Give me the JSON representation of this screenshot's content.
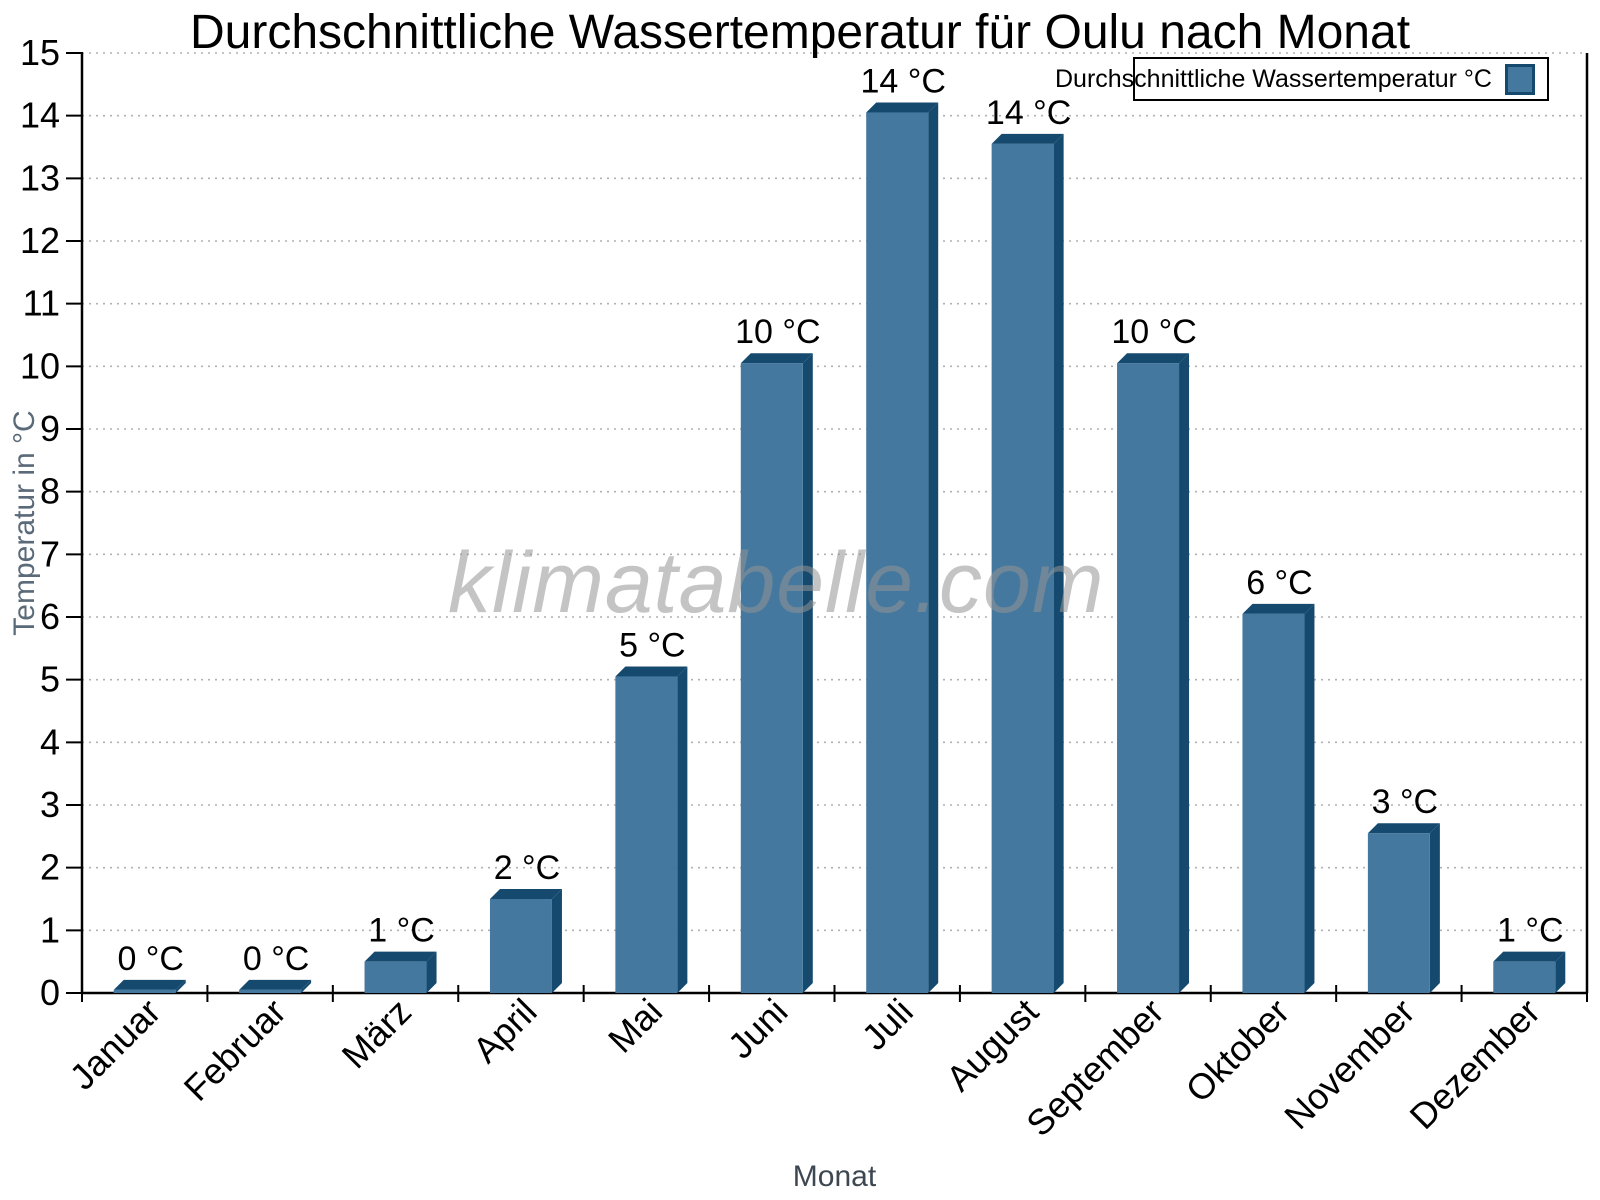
{
  "watermark": "klimatabelle.com",
  "chart_data": {
    "type": "bar",
    "title": "Durchschnittliche Wassertemperatur für Oulu nach Monat",
    "xlabel": "Monat",
    "ylabel": "Temperatur in °C",
    "legend_label": "Durchschnittliche Wassertemperatur °C",
    "legend_position": "top-right",
    "categories": [
      "Januar",
      "Februar",
      "März",
      "April",
      "Mai",
      "Juni",
      "Juli",
      "August",
      "September",
      "Oktober",
      "November",
      "Dezember"
    ],
    "values": [
      0.05,
      0.05,
      0.5,
      1.5,
      5.05,
      10.05,
      14.05,
      13.55,
      10.05,
      6.05,
      2.55,
      0.5
    ],
    "bar_labels": [
      "0 °C",
      "0 °C",
      "1 °C",
      "2 °C",
      "5 °C",
      "10 °C",
      "14 °C",
      "14 °C",
      "10 °C",
      "6 °C",
      "3 °C",
      "1 °C"
    ],
    "ylim": [
      0,
      15
    ],
    "yticks": [
      0,
      1,
      2,
      3,
      4,
      5,
      6,
      7,
      8,
      9,
      10,
      11,
      12,
      13,
      14,
      15
    ],
    "grid": "horizontal-dotted",
    "colors": {
      "bar_front": "#44789E",
      "bar_shade": "#154A6E",
      "grid": "#B0B0B0",
      "axis": "#000000",
      "y_axis_label": "#5A6A79",
      "x_axis_label": "#3D4751",
      "watermark": "#949494"
    }
  }
}
